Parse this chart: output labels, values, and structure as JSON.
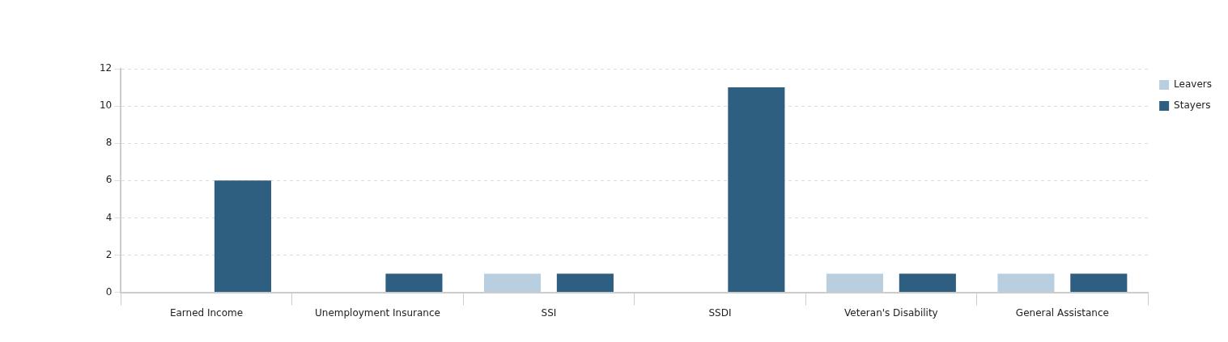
{
  "chart_data": {
    "type": "bar",
    "categories": [
      "Earned Income",
      "Unemployment Insurance",
      "SSI",
      "SSDI",
      "Veteran's Disability",
      "General Assistance"
    ],
    "series": [
      {
        "name": "Leavers",
        "color": "#b9cfe0",
        "values": [
          0,
          0,
          1,
          0,
          1,
          1
        ]
      },
      {
        "name": "Stayers",
        "color": "#2f5f80",
        "values": [
          6,
          1,
          1,
          11,
          1,
          1
        ]
      }
    ],
    "ylim": [
      0,
      12
    ],
    "yticks": [
      0,
      2,
      4,
      6,
      8,
      10,
      12
    ],
    "grid": "y",
    "legend": "top right"
  }
}
